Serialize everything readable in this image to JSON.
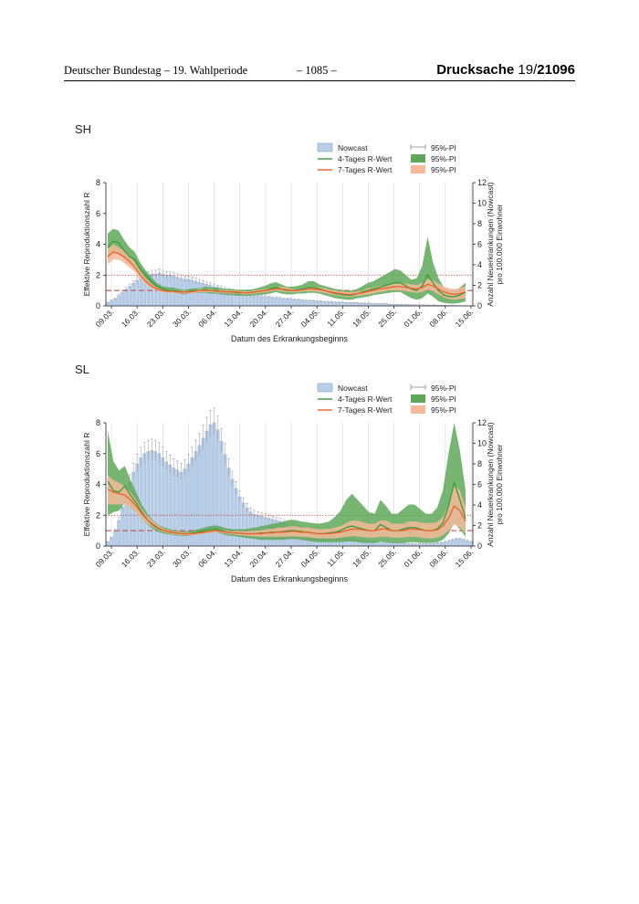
{
  "header": {
    "left": "Deutscher Bundestag – 19. Wahlperiode",
    "center": "– 1085 –",
    "right_label": "Drucksache",
    "right_prefix": "19/",
    "right_number": "21096"
  },
  "legend": {
    "nowcast": "Nowcast",
    "r4": "4-Tages R-Wert",
    "r7": "7-Tages R-Wert",
    "pi": "95%-PI"
  },
  "colors": {
    "nowcast_fill": "#b9cfe8",
    "nowcast_edge": "#7f9fc8",
    "r4_line": "#3d9b35",
    "r4_band": "#5fa85a",
    "r7_line": "#e8642c",
    "r7_band": "#f6b99a",
    "ref_line": "#c04040"
  },
  "chart_data": [
    {
      "type": "bar+line",
      "title": "SH",
      "xlabel": "Datum des Erkrankungsbeginns",
      "ylabel_left": "Effektive Reproduktionszahl R",
      "ylabel_right": "Anzahl Neuerkrankungen (Nowcast) pro 100.000 Einwohner",
      "ylim_left": [
        0,
        8
      ],
      "ylim_right": [
        0,
        12
      ],
      "yticks_left": [
        0,
        2,
        4,
        6,
        8
      ],
      "yticks_right": [
        0,
        2,
        4,
        6,
        8,
        10,
        12
      ],
      "xticklabels": [
        "09.03.",
        "16.03.",
        "23.03.",
        "30.03.",
        "06.04.",
        "13.04.",
        "20.04.",
        "27.04.",
        "04.05.",
        "11.05.",
        "18.05.",
        "25.05.",
        "01.06.",
        "08.06.",
        "15.06."
      ],
      "reference_lines_R": [
        1,
        2
      ],
      "nowcast_per_100k": [
        0.3,
        0.5,
        0.7,
        1.0,
        1.3,
        1.6,
        1.9,
        2.2,
        2.5,
        2.7,
        2.9,
        3.0,
        3.1,
        3.1,
        3.2,
        3.1,
        3.0,
        3.0,
        2.9,
        2.8,
        2.7,
        2.6,
        2.6,
        2.5,
        2.4,
        2.3,
        2.2,
        2.1,
        2.0,
        1.9,
        1.8,
        1.7,
        1.6,
        1.5,
        1.4,
        1.3,
        1.25,
        1.2,
        1.1,
        1.05,
        1.0,
        0.95,
        0.9,
        0.9,
        0.85,
        0.8,
        0.8,
        0.75,
        0.7,
        0.7,
        0.65,
        0.6,
        0.6,
        0.55,
        0.5,
        0.5,
        0.5,
        0.45,
        0.45,
        0.4,
        0.4,
        0.4,
        0.35,
        0.35,
        0.35,
        0.3,
        0.3,
        0.3,
        0.3,
        0.25,
        0.25,
        0.25,
        0.2,
        0.2,
        0.2,
        0.2,
        0.2,
        0.15,
        0.15,
        0.15,
        0.15,
        0.12,
        0.12,
        0.1,
        0.1,
        0.1,
        0.1,
        0.08,
        0.08,
        0.08,
        0.06,
        0.05,
        0.05,
        0.04,
        0.04,
        0.03,
        0.03,
        0.02,
        0.02,
        0.02
      ],
      "r4": [
        3.8,
        4.2,
        4.1,
        3.6,
        3.2,
        3.0,
        2.4,
        2.0,
        1.6,
        1.3,
        1.1,
        1.0,
        1.0,
        0.95,
        0.9,
        0.95,
        1.0,
        1.0,
        1.05,
        1.0,
        1.0,
        0.95,
        0.9,
        0.9,
        0.85,
        0.85,
        0.85,
        0.9,
        0.95,
        1.0,
        1.1,
        1.2,
        1.1,
        1.0,
        1.0,
        1.05,
        1.1,
        1.2,
        1.2,
        1.1,
        1.0,
        0.9,
        0.8,
        0.75,
        0.7,
        0.7,
        0.8,
        0.9,
        1.0,
        1.1,
        1.2,
        1.3,
        1.4,
        1.5,
        1.5,
        1.3,
        1.1,
        1.0,
        1.3,
        2.0,
        1.5,
        1.0,
        0.7,
        0.6,
        0.6,
        0.7,
        0.9
      ],
      "r4_lo": [
        3.0,
        3.4,
        3.4,
        3.0,
        2.7,
        2.5,
        2.0,
        1.7,
        1.3,
        1.1,
        0.9,
        0.85,
        0.85,
        0.8,
        0.75,
        0.8,
        0.85,
        0.85,
        0.85,
        0.8,
        0.8,
        0.75,
        0.7,
        0.7,
        0.65,
        0.65,
        0.65,
        0.7,
        0.7,
        0.75,
        0.8,
        0.9,
        0.8,
        0.75,
        0.75,
        0.8,
        0.8,
        0.85,
        0.85,
        0.8,
        0.7,
        0.6,
        0.5,
        0.45,
        0.4,
        0.4,
        0.5,
        0.55,
        0.6,
        0.7,
        0.75,
        0.8,
        0.85,
        0.9,
        0.9,
        0.7,
        0.5,
        0.4,
        0.5,
        0.8,
        0.6,
        0.3,
        0.2,
        0.15,
        0.15,
        0.2,
        0.3
      ],
      "r4_hi": [
        4.7,
        5.0,
        4.9,
        4.3,
        3.8,
        3.5,
        2.8,
        2.3,
        1.9,
        1.5,
        1.3,
        1.2,
        1.2,
        1.1,
        1.05,
        1.1,
        1.15,
        1.15,
        1.25,
        1.2,
        1.2,
        1.15,
        1.1,
        1.1,
        1.05,
        1.05,
        1.05,
        1.1,
        1.2,
        1.3,
        1.45,
        1.55,
        1.4,
        1.25,
        1.25,
        1.3,
        1.4,
        1.6,
        1.6,
        1.4,
        1.3,
        1.2,
        1.1,
        1.05,
        1.0,
        1.0,
        1.1,
        1.3,
        1.5,
        1.6,
        1.8,
        2.0,
        2.2,
        2.4,
        2.3,
        2.0,
        1.7,
        1.8,
        2.6,
        4.5,
        2.8,
        1.8,
        1.2,
        1.0,
        1.0,
        1.2,
        1.5
      ],
      "r7": [
        3.2,
        3.5,
        3.4,
        3.2,
        2.9,
        2.5,
        2.0,
        1.6,
        1.3,
        1.1,
        1.0,
        0.95,
        0.95,
        0.9,
        0.9,
        0.9,
        0.95,
        1.0,
        1.0,
        1.0,
        0.95,
        0.95,
        0.9,
        0.9,
        0.9,
        0.85,
        0.85,
        0.9,
        0.95,
        1.0,
        1.05,
        1.1,
        1.1,
        1.05,
        1.0,
        1.0,
        1.05,
        1.1,
        1.1,
        1.05,
        1.0,
        0.9,
        0.85,
        0.8,
        0.75,
        0.75,
        0.8,
        0.85,
        0.95,
        1.0,
        1.1,
        1.15,
        1.2,
        1.25,
        1.25,
        1.2,
        1.15,
        1.1,
        1.2,
        1.4,
        1.3,
        1.1,
        0.9,
        0.8,
        0.75,
        0.8,
        0.9
      ],
      "r7_lo": [
        2.7,
        3.0,
        3.0,
        2.8,
        2.5,
        2.2,
        1.75,
        1.4,
        1.15,
        1.0,
        0.9,
        0.85,
        0.85,
        0.8,
        0.8,
        0.8,
        0.85,
        0.9,
        0.9,
        0.9,
        0.85,
        0.85,
        0.8,
        0.8,
        0.8,
        0.75,
        0.75,
        0.8,
        0.85,
        0.9,
        0.95,
        1.0,
        0.95,
        0.9,
        0.9,
        0.9,
        0.95,
        0.95,
        0.95,
        0.9,
        0.85,
        0.75,
        0.7,
        0.65,
        0.6,
        0.6,
        0.65,
        0.7,
        0.75,
        0.8,
        0.9,
        0.95,
        1.0,
        1.0,
        1.0,
        0.95,
        0.9,
        0.85,
        0.9,
        1.05,
        0.95,
        0.75,
        0.55,
        0.45,
        0.4,
        0.45,
        0.5
      ],
      "r7_hi": [
        3.7,
        4.0,
        3.8,
        3.6,
        3.3,
        2.8,
        2.25,
        1.8,
        1.45,
        1.2,
        1.1,
        1.05,
        1.05,
        1.0,
        1.0,
        1.0,
        1.05,
        1.1,
        1.1,
        1.1,
        1.05,
        1.05,
        1.0,
        1.0,
        1.0,
        0.95,
        0.95,
        1.0,
        1.05,
        1.1,
        1.15,
        1.2,
        1.25,
        1.2,
        1.1,
        1.1,
        1.15,
        1.25,
        1.25,
        1.2,
        1.15,
        1.05,
        1.0,
        0.95,
        0.9,
        0.9,
        0.95,
        1.0,
        1.15,
        1.2,
        1.3,
        1.35,
        1.4,
        1.5,
        1.5,
        1.45,
        1.4,
        1.35,
        1.5,
        1.75,
        1.65,
        1.45,
        1.25,
        1.15,
        1.1,
        1.15,
        1.3
      ]
    },
    {
      "type": "bar+line",
      "title": "SL",
      "xlabel": "Datum des Erkrankungsbeginns",
      "ylabel_left": "Effektive Reproduktionszahl R",
      "ylabel_right": "Anzahl Neuerkrankungen (Nowcast) pro 100.000 Einwohner",
      "ylim_left": [
        0,
        8
      ],
      "ylim_right": [
        0,
        12
      ],
      "yticks_left": [
        0,
        2,
        4,
        6,
        8
      ],
      "yticks_right": [
        0,
        2,
        4,
        6,
        8,
        10,
        12
      ],
      "xticklabels": [
        "09.03.",
        "16.03.",
        "23.03.",
        "30.03.",
        "06.04.",
        "13.04.",
        "20.04.",
        "27.04.",
        "04.05.",
        "11.05.",
        "18.05.",
        "25.05.",
        "01.06.",
        "08.06.",
        "15.06."
      ],
      "reference_lines_R": [
        1,
        2
      ],
      "nowcast_per_100k": [
        0.4,
        0.8,
        1.5,
        2.5,
        3.8,
        5.0,
        6.2,
        7.2,
        8.0,
        8.6,
        9.0,
        9.2,
        9.3,
        9.2,
        9.0,
        8.6,
        8.2,
        7.9,
        7.6,
        7.4,
        7.2,
        7.5,
        8.0,
        8.6,
        9.2,
        9.8,
        10.5,
        11.2,
        11.8,
        12.0,
        11.3,
        10.2,
        8.9,
        7.6,
        6.5,
        5.6,
        4.8,
        4.2,
        3.7,
        3.3,
        3.1,
        3.0,
        2.9,
        2.8,
        2.7,
        2.6,
        2.5,
        2.4,
        2.3,
        2.1,
        2.0,
        1.9,
        1.8,
        1.7,
        1.6,
        1.5,
        1.4,
        1.3,
        1.2,
        1.1,
        1.0,
        0.95,
        0.9,
        0.85,
        0.8,
        0.75,
        0.7,
        0.65,
        0.6,
        0.55,
        0.5,
        0.5,
        0.45,
        0.45,
        0.4,
        0.4,
        0.35,
        0.35,
        0.3,
        0.3,
        0.3,
        0.25,
        0.25,
        0.25,
        0.2,
        0.2,
        0.2,
        0.2,
        0.2,
        0.25,
        0.3,
        0.35,
        0.4,
        0.5,
        0.6,
        0.7,
        0.7,
        0.6,
        0.5,
        0.4
      ],
      "r4": [
        4.2,
        3.6,
        3.5,
        3.9,
        3.3,
        2.8,
        2.2,
        1.7,
        1.35,
        1.1,
        1.0,
        0.9,
        0.85,
        0.8,
        0.8,
        0.85,
        0.9,
        1.0,
        1.05,
        1.1,
        1.0,
        0.9,
        0.85,
        0.85,
        0.8,
        0.8,
        0.8,
        0.85,
        0.85,
        0.9,
        0.9,
        0.95,
        1.0,
        1.0,
        0.95,
        0.9,
        0.85,
        0.8,
        0.8,
        0.85,
        0.9,
        1.0,
        1.2,
        1.3,
        1.2,
        1.1,
        1.0,
        1.0,
        1.4,
        1.2,
        1.0,
        1.0,
        1.1,
        1.2,
        1.2,
        1.1,
        1.0,
        1.0,
        1.1,
        1.5,
        2.6,
        4.1,
        3.0,
        1.8
      ],
      "r4_lo": [
        2.0,
        2.2,
        2.3,
        2.8,
        2.5,
        2.2,
        1.8,
        1.4,
        1.1,
        0.9,
        0.8,
        0.75,
        0.7,
        0.65,
        0.65,
        0.7,
        0.75,
        0.8,
        0.85,
        0.9,
        0.8,
        0.7,
        0.65,
        0.6,
        0.55,
        0.5,
        0.45,
        0.4,
        0.4,
        0.4,
        0.4,
        0.4,
        0.45,
        0.45,
        0.4,
        0.35,
        0.3,
        0.25,
        0.25,
        0.25,
        0.25,
        0.25,
        0.3,
        0.3,
        0.25,
        0.2,
        0.2,
        0.2,
        0.3,
        0.25,
        0.2,
        0.2,
        0.2,
        0.25,
        0.25,
        0.2,
        0.2,
        0.2,
        0.25,
        0.4,
        0.8,
        1.5,
        1.1,
        0.6
      ],
      "r4_hi": [
        7.5,
        5.5,
        4.9,
        5.2,
        4.3,
        3.5,
        2.7,
        2.1,
        1.65,
        1.35,
        1.2,
        1.1,
        1.0,
        0.95,
        0.95,
        1.0,
        1.1,
        1.2,
        1.3,
        1.35,
        1.25,
        1.15,
        1.1,
        1.1,
        1.1,
        1.15,
        1.2,
        1.3,
        1.35,
        1.45,
        1.5,
        1.6,
        1.7,
        1.7,
        1.6,
        1.55,
        1.5,
        1.45,
        1.5,
        1.6,
        1.9,
        2.3,
        3.0,
        3.4,
        3.0,
        2.6,
        2.2,
        2.1,
        3.0,
        2.6,
        2.1,
        2.1,
        2.4,
        2.7,
        2.7,
        2.4,
        2.1,
        2.1,
        2.5,
        3.6,
        6.0,
        8.0,
        6.2,
        3.6
      ],
      "r7": [
        3.7,
        3.5,
        3.4,
        3.3,
        3.0,
        2.6,
        2.1,
        1.7,
        1.4,
        1.15,
        1.0,
        0.9,
        0.85,
        0.8,
        0.8,
        0.8,
        0.85,
        0.9,
        0.95,
        1.0,
        0.95,
        0.9,
        0.85,
        0.85,
        0.8,
        0.8,
        0.8,
        0.8,
        0.85,
        0.85,
        0.9,
        0.9,
        0.95,
        0.95,
        0.9,
        0.9,
        0.85,
        0.8,
        0.8,
        0.8,
        0.85,
        0.9,
        1.0,
        1.1,
        1.1,
        1.05,
        1.0,
        1.0,
        1.1,
        1.1,
        1.0,
        1.0,
        1.0,
        1.1,
        1.1,
        1.05,
        1.0,
        1.0,
        1.05,
        1.3,
        1.8,
        2.6,
        2.3,
        1.6
      ],
      "r7_lo": [
        2.7,
        2.7,
        2.7,
        2.7,
        2.5,
        2.2,
        1.8,
        1.45,
        1.2,
        1.0,
        0.88,
        0.8,
        0.75,
        0.7,
        0.7,
        0.7,
        0.75,
        0.8,
        0.85,
        0.9,
        0.85,
        0.8,
        0.75,
        0.72,
        0.68,
        0.65,
        0.62,
        0.6,
        0.6,
        0.6,
        0.6,
        0.6,
        0.62,
        0.62,
        0.6,
        0.58,
        0.55,
        0.5,
        0.5,
        0.5,
        0.5,
        0.55,
        0.6,
        0.65,
        0.62,
        0.58,
        0.55,
        0.55,
        0.6,
        0.6,
        0.55,
        0.55,
        0.55,
        0.6,
        0.6,
        0.55,
        0.5,
        0.5,
        0.55,
        0.7,
        1.0,
        1.4,
        1.2,
        0.8
      ],
      "r7_hi": [
        4.6,
        4.3,
        4.1,
        3.9,
        3.5,
        3.0,
        2.4,
        1.95,
        1.6,
        1.3,
        1.12,
        1.0,
        0.95,
        0.9,
        0.9,
        0.9,
        0.95,
        1.0,
        1.05,
        1.1,
        1.05,
        1.0,
        0.95,
        0.98,
        0.95,
        0.98,
        1.0,
        1.02,
        1.1,
        1.12,
        1.2,
        1.2,
        1.28,
        1.28,
        1.2,
        1.22,
        1.15,
        1.1,
        1.1,
        1.12,
        1.2,
        1.3,
        1.5,
        1.65,
        1.65,
        1.55,
        1.45,
        1.45,
        1.65,
        1.65,
        1.45,
        1.45,
        1.45,
        1.6,
        1.6,
        1.55,
        1.5,
        1.5,
        1.55,
        1.9,
        2.7,
        4.0,
        3.6,
        2.5
      ]
    }
  ]
}
